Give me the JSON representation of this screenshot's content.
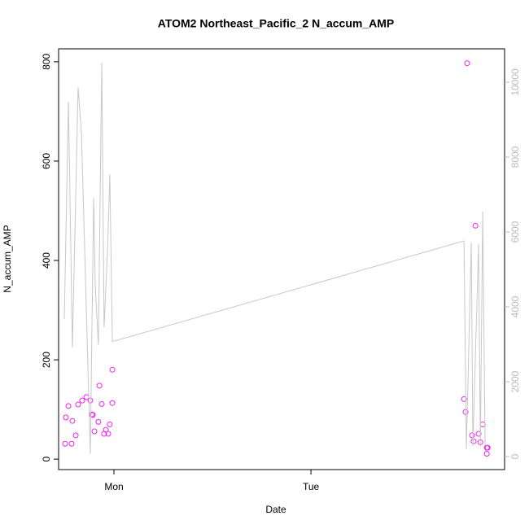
{
  "chart_data": {
    "type": "scatter",
    "title": "ATOM2 Northeast_Pacific_2 N_accum_AMP",
    "x_label": "Date",
    "y_label": "N_accum_AMP",
    "xlim": [
      -0.281,
      1.983
    ],
    "xticks": [
      {
        "value": 0,
        "label": "Mon"
      },
      {
        "value": 1,
        "label": "Tue"
      }
    ],
    "ylim": [
      -21,
      826
    ],
    "yticks": [
      0,
      200,
      400,
      600,
      800
    ],
    "y2lim": [
      -348,
      10891
    ],
    "y2ticks": [
      0,
      2000,
      4000,
      6000,
      8000,
      10000
    ],
    "series": [
      {
        "type": "scatter",
        "color": "#ee22ee",
        "x": [
          -0.248,
          -0.244,
          -0.231,
          -0.215,
          -0.211,
          -0.194,
          -0.182,
          -0.161,
          -0.14,
          -0.12,
          -0.112,
          -0.107,
          -0.099,
          -0.079,
          -0.074,
          -0.062,
          -0.05,
          -0.041,
          -0.029,
          -0.021,
          -0.008,
          -0.008,
          1.777,
          1.785,
          1.793,
          1.818,
          1.826,
          1.835,
          1.851,
          1.86,
          1.872,
          1.893,
          1.897,
          1.893
        ],
        "values": [
          31,
          84,
          107,
          31,
          77,
          48,
          110,
          118,
          125,
          118,
          90,
          89,
          56,
          75,
          148,
          111,
          51,
          59,
          51,
          70,
          113,
          180,
          121,
          95,
          797,
          48,
          36,
          470,
          51,
          34,
          70,
          23,
          23,
          11
        ]
      },
      {
        "type": "line",
        "color": "#c8c8c8",
        "axis": "y2",
        "x": [
          -0.252,
          -0.231,
          -0.211,
          -0.182,
          -0.165,
          -0.12,
          -0.103,
          -0.095,
          -0.079,
          -0.062,
          -0.05,
          -0.033,
          -0.021,
          -0.008,
          1.777,
          1.789,
          1.814,
          1.822,
          1.851,
          1.86,
          1.872,
          1.884
        ],
        "values": [
          3670,
          9480,
          2910,
          9850,
          8650,
          70,
          6910,
          4590,
          2980,
          10520,
          3460,
          5460,
          7540,
          3070,
          5760,
          200,
          5720,
          280,
          5670,
          280,
          6540,
          280
        ]
      }
    ]
  }
}
